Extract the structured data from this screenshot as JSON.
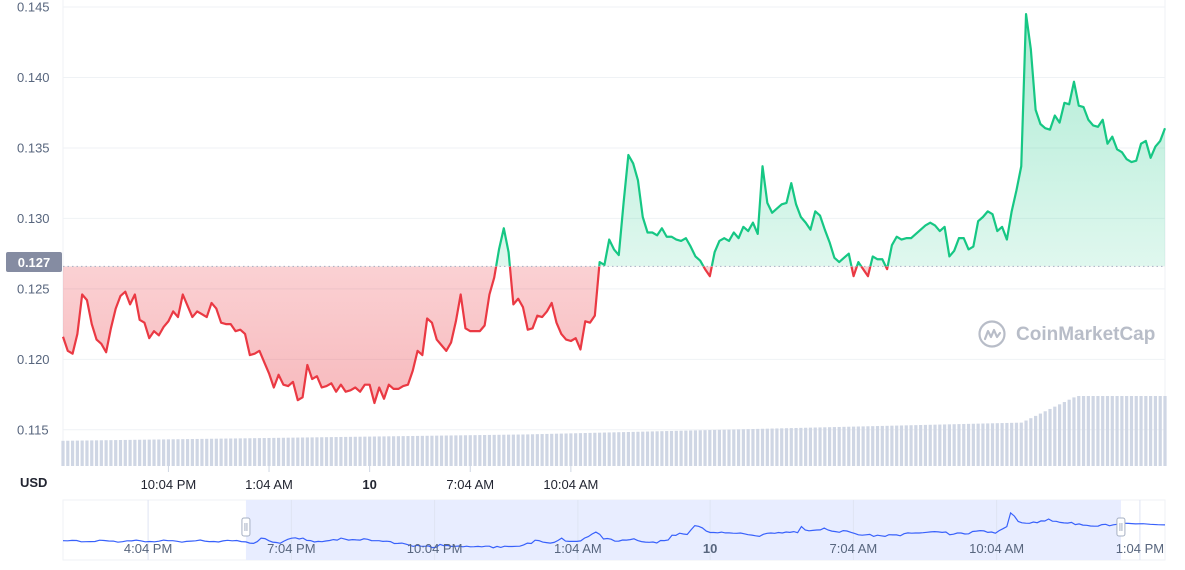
{
  "chart_data": {
    "type": "line",
    "currency_label": "USD",
    "watermark": "CoinMarketCap",
    "current_price_label": "0.127",
    "baseline": 0.1266,
    "ylim": [
      0.1125,
      0.1455
    ],
    "y_ticks": [
      "0.115",
      "0.120",
      "0.125",
      "0.130",
      "0.135",
      "0.140",
      "0.145"
    ],
    "x_ticks": [
      {
        "label": "10:04 PM",
        "t": 22
      },
      {
        "label": "1:04 AM",
        "t": 43
      },
      {
        "label": "10",
        "t": 64,
        "bold": true
      },
      {
        "label": "7:04 AM",
        "t": 85
      },
      {
        "label": "10:04 AM",
        "t": 106
      }
    ],
    "price": [
      0.1216,
      0.1206,
      0.1204,
      0.1218,
      0.1246,
      0.1242,
      0.1225,
      0.1214,
      0.1211,
      0.1205,
      0.1222,
      0.1236,
      0.1245,
      0.1248,
      0.1239,
      0.1246,
      0.1228,
      0.1226,
      0.1215,
      0.122,
      0.1217,
      0.1223,
      0.1227,
      0.1234,
      0.123,
      0.1246,
      0.1238,
      0.123,
      0.1234,
      0.1232,
      0.123,
      0.124,
      0.1236,
      0.1226,
      0.1225,
      0.1225,
      0.122,
      0.1221,
      0.1218,
      0.1203,
      0.1204,
      0.1206,
      0.1198,
      0.119,
      0.118,
      0.1189,
      0.1182,
      0.1181,
      0.1184,
      0.1171,
      0.1173,
      0.1196,
      0.1186,
      0.1188,
      0.118,
      0.1181,
      0.1183,
      0.1177,
      0.1182,
      0.1177,
      0.1178,
      0.118,
      0.1177,
      0.1182,
      0.1182,
      0.1169,
      0.118,
      0.1172,
      0.1182,
      0.1179,
      0.1179,
      0.1181,
      0.1182,
      0.1192,
      0.1206,
      0.1203,
      0.1229,
      0.1226,
      0.1214,
      0.121,
      0.1206,
      0.1212,
      0.1227,
      0.1246,
      0.1222,
      0.122,
      0.122,
      0.122,
      0.1224,
      0.1246,
      0.1258,
      0.1278,
      0.1293,
      0.1276,
      0.1239,
      0.1243,
      0.1237,
      0.1221,
      0.1222,
      0.1231,
      0.123,
      0.1234,
      0.124,
      0.1226,
      0.1218,
      0.1214,
      0.1213,
      0.1215,
      0.1207,
      0.1227,
      0.1226,
      0.1231,
      0.1269,
      0.1267,
      0.1285,
      0.1278,
      0.1274,
      0.1311,
      0.1345,
      0.1339,
      0.1327,
      0.1301,
      0.129,
      0.129,
      0.1288,
      0.1293,
      0.1287,
      0.1287,
      0.1285,
      0.1284,
      0.1286,
      0.128,
      0.1273,
      0.127,
      0.1264,
      0.1259,
      0.1276,
      0.1284,
      0.1286,
      0.1284,
      0.129,
      0.1286,
      0.1294,
      0.1291,
      0.1297,
      0.1289,
      0.1337,
      0.1311,
      0.1304,
      0.1307,
      0.131,
      0.1311,
      0.1325,
      0.131,
      0.1301,
      0.1297,
      0.1292,
      0.1305,
      0.1302,
      0.1292,
      0.1283,
      0.1272,
      0.1269,
      0.1272,
      0.1275,
      0.1259,
      0.1269,
      0.1264,
      0.1259,
      0.1273,
      0.1271,
      0.1271,
      0.1264,
      0.1281,
      0.1287,
      0.1285,
      0.1286,
      0.1286,
      0.1289,
      0.1292,
      0.1295,
      0.1297,
      0.1295,
      0.1291,
      0.1294,
      0.1273,
      0.1277,
      0.1286,
      0.1286,
      0.1278,
      0.128,
      0.1298,
      0.1301,
      0.1305,
      0.1303,
      0.1291,
      0.1294,
      0.1285,
      0.1305,
      0.132,
      0.1337,
      0.1445,
      0.142,
      0.1377,
      0.1367,
      0.1364,
      0.1363,
      0.1373,
      0.1368,
      0.1382,
      0.1381,
      0.1397,
      0.138,
      0.1379,
      0.137,
      0.1366,
      0.1365,
      0.137,
      0.1353,
      0.1358,
      0.1349,
      0.1347,
      0.1342,
      0.134,
      0.1341,
      0.1353,
      0.1355,
      0.1343,
      0.1351,
      0.1355,
      0.1364
    ],
    "volume_relative": {
      "start": 0.36,
      "mid": 0.62,
      "end": 1.0
    },
    "navigator": {
      "x_ticks": [
        {
          "label": "4:04 PM",
          "t": 0.05
        },
        {
          "label": "7:04 PM",
          "t": 0.18
        },
        {
          "label": "10:04 PM",
          "t": 0.31
        },
        {
          "label": "1:04 AM",
          "t": 0.44
        },
        {
          "label": "10",
          "t": 0.56,
          "bold": true
        },
        {
          "label": "7:04 AM",
          "t": 0.69
        },
        {
          "label": "10:04 AM",
          "t": 0.82
        },
        {
          "label": "1:04 PM",
          "t": 0.95
        }
      ],
      "selection": [
        0.166,
        0.96
      ]
    },
    "colors": {
      "up_line": "#16c784",
      "down_line": "#ea3943",
      "grid": "#eff2f5",
      "volume": "#cfd6e4",
      "navigator_line": "#3861fb",
      "navigator_selection": "#e8edff",
      "price_tag_bg": "#858ca2"
    }
  }
}
